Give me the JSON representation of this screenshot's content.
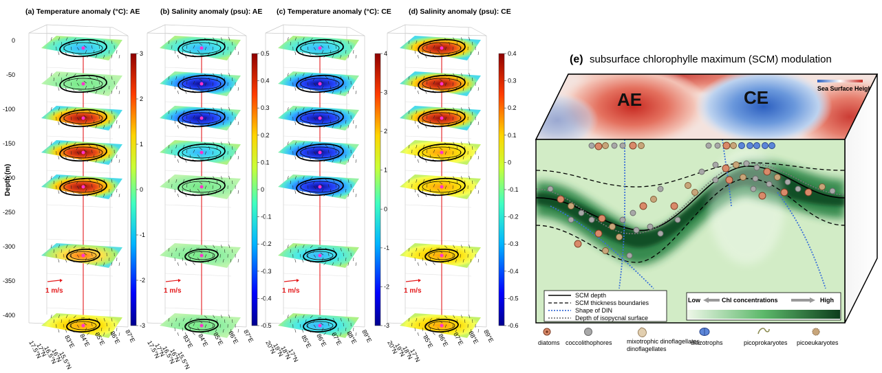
{
  "panels": [
    {
      "title": "(a) Temperature anomaly (°C): AE",
      "cbar_ticks": [
        "3",
        "2",
        "1",
        "0",
        "-1",
        "-2",
        "-3"
      ],
      "kind": "ae_temp"
    },
    {
      "title": "(b) Salinity anomaly (psu): AE",
      "cbar_ticks": [
        "0.5",
        "0.4",
        "0.3",
        "0.2",
        "0.1",
        "0",
        "-0.1",
        "-0.2",
        "-0.3",
        "-0.4",
        "-0.5"
      ],
      "kind": "ae_sal"
    },
    {
      "title": "(c) Temperature anomaly (°C): CE",
      "cbar_ticks": [
        "4",
        "3",
        "2",
        "1",
        "0",
        "-1",
        "-2",
        "-3"
      ],
      "kind": "ce_temp"
    },
    {
      "title": "(d) Salinity anomaly (psu): CE",
      "cbar_ticks": [
        "0.4",
        "0.3",
        "0.2",
        "0.1",
        "0",
        "-0.1",
        "-0.2",
        "-0.3",
        "-0.4",
        "-0.5",
        "-0.6"
      ],
      "kind": "ce_sal"
    }
  ],
  "depth_axis": {
    "label": "Depth (m)",
    "ticks": [
      "0",
      "-50",
      "-100",
      "-150",
      "-200",
      "-250",
      "-300",
      "-350",
      "-400"
    ]
  },
  "reference_vector": "1 m/s",
  "lat_ticks": {
    "ae": [
      "17.5°N",
      "17°N",
      "16.5°N",
      "16°N",
      "15.5°N"
    ],
    "ce": [
      "20°N",
      "19°N",
      "18°N",
      "17°N"
    ]
  },
  "lon_ticks": {
    "ae": [
      "83°E",
      "84°E",
      "85°E",
      "86°E",
      "87°E"
    ],
    "ce": [
      "85°E",
      "86°E",
      "87°E",
      "88°E",
      "89°E"
    ]
  },
  "schematic": {
    "label": "(e)",
    "title": "subsurface chlorophylle maximum (SCM) modulation",
    "ae_label": "AE",
    "ce_label": "CE",
    "ssh_label": "Sea Surface Height",
    "legend": [
      {
        "style": "solid",
        "text": "SCM depth"
      },
      {
        "style": "dashed",
        "text": "SCM thickness boundaries"
      },
      {
        "style": "blue-dotted",
        "text": "Shape of DIN"
      },
      {
        "style": "gray-dotted",
        "text": "Depth of isopycnal surface"
      }
    ],
    "chl_bar": {
      "low": "Low",
      "mid": "Chl concentrations",
      "high": "High"
    },
    "organisms": [
      "diatoms",
      "coccolithophores",
      "mixotrophic dinoflagellates",
      "diazotrophs",
      "picoprokaryotes",
      "picoeukaryotes"
    ],
    "colors": {
      "ssh_pos": "#d5433a",
      "ssh_neg": "#3f75c7",
      "chl_low": "#eef7e8",
      "chl_high": "#0d5a2a",
      "din": "#3a6fd8"
    }
  }
}
